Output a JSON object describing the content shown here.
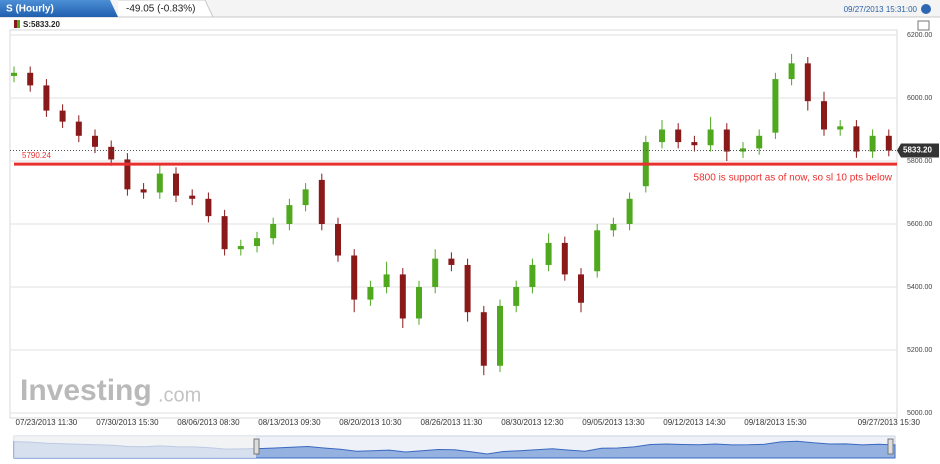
{
  "header": {
    "tab": "S (Hourly)",
    "change": "-49.05 (-0.83%)",
    "timestamp": "09/27/2013 15:31:00"
  },
  "chart_data": {
    "type": "candlestick",
    "legend": "S:5833.20",
    "categories": [
      null,
      null,
      "07/23/2013 11:30",
      null,
      null,
      null,
      null,
      "07/30/2013 15:30",
      null,
      null,
      null,
      null,
      "08/06/2013 08:30",
      null,
      null,
      null,
      null,
      "08/13/2013 09:30",
      null,
      null,
      null,
      null,
      "08/20/2013 10:30",
      null,
      null,
      null,
      null,
      "08/26/2013 11:30",
      null,
      null,
      null,
      null,
      "08/30/2013 12:30",
      null,
      null,
      null,
      null,
      "09/05/2013 13:30",
      null,
      null,
      null,
      null,
      "09/12/2013 14:30",
      null,
      null,
      null,
      null,
      "09/18/2013 15:30",
      null,
      null,
      null,
      null,
      null,
      null,
      "09/27/2013 15:30"
    ],
    "open": [
      6070,
      6080,
      6040,
      5960,
      5925,
      5880,
      5845,
      5805,
      5710,
      5700,
      5760,
      5690,
      5680,
      5625,
      5520,
      5530,
      5555,
      5600,
      5660,
      5740,
      5600,
      5500,
      5360,
      5400,
      5440,
      5300,
      5400,
      5490,
      5470,
      5320,
      5150,
      5340,
      5400,
      5470,
      5540,
      5440,
      5450,
      5580,
      5600,
      5720,
      5860,
      5900,
      5860,
      5850,
      5900,
      5830,
      5840,
      5890,
      6060,
      6110,
      5990,
      5900,
      5910,
      5830,
      5880
    ],
    "high": [
      6100,
      6100,
      6060,
      5980,
      5945,
      5900,
      5865,
      5825,
      5730,
      5790,
      5780,
      5710,
      5700,
      5645,
      5550,
      5575,
      5620,
      5680,
      5730,
      5760,
      5620,
      5520,
      5420,
      5480,
      5460,
      5420,
      5520,
      5510,
      5490,
      5340,
      5360,
      5420,
      5490,
      5570,
      5560,
      5460,
      5600,
      5620,
      5700,
      5880,
      5930,
      5920,
      5880,
      5940,
      5920,
      5860,
      5900,
      6080,
      6140,
      6130,
      6020,
      5930,
      5930,
      5900,
      5900
    ],
    "low": [
      6050,
      6020,
      5940,
      5905,
      5860,
      5825,
      5785,
      5690,
      5680,
      5680,
      5670,
      5660,
      5605,
      5500,
      5500,
      5510,
      5535,
      5580,
      5640,
      5580,
      5480,
      5320,
      5340,
      5380,
      5270,
      5280,
      5380,
      5450,
      5290,
      5120,
      5130,
      5320,
      5380,
      5450,
      5420,
      5320,
      5430,
      5560,
      5580,
      5700,
      5840,
      5840,
      5830,
      5830,
      5800,
      5810,
      5820,
      5870,
      6040,
      5960,
      5880,
      5880,
      5810,
      5810,
      5815
    ],
    "close": [
      6080,
      6040,
      5960,
      5925,
      5880,
      5845,
      5805,
      5710,
      5700,
      5760,
      5690,
      5680,
      5625,
      5520,
      5530,
      5555,
      5600,
      5660,
      5710,
      5600,
      5500,
      5360,
      5400,
      5440,
      5300,
      5400,
      5490,
      5470,
      5320,
      5150,
      5340,
      5400,
      5470,
      5540,
      5440,
      5350,
      5580,
      5600,
      5680,
      5860,
      5900,
      5860,
      5850,
      5900,
      5830,
      5840,
      5880,
      6060,
      6110,
      5990,
      5900,
      5910,
      5830,
      5880,
      5833.2
    ],
    "up_color": "#4fa81e",
    "down_color": "#8a1a1a",
    "ylim": [
      5000,
      6200
    ],
    "yticks": [
      {
        "value": 5000,
        "label": "5000.00"
      },
      {
        "value": 5200,
        "label": "5200.00"
      },
      {
        "value": 5400,
        "label": "5400.00"
      },
      {
        "value": 5600,
        "label": "5600.00"
      },
      {
        "value": 5800,
        "label": "5800.00"
      },
      {
        "value": 6000,
        "label": "6000.00"
      },
      {
        "value": 6200,
        "label": "6200.00"
      }
    ],
    "grid": true,
    "last_price": {
      "value": 5833.2,
      "label": "5833.20"
    },
    "support_line": {
      "value": 5790.24,
      "label": "5790.24",
      "color": "#e8312f"
    },
    "annotation": "5800 is support as of now, so sl 10 pts below"
  },
  "watermark": {
    "brand": "Investing",
    "suffix": ".com"
  }
}
